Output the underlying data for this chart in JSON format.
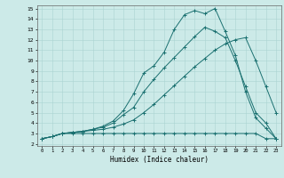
{
  "title": "",
  "xlabel": "Humidex (Indice chaleur)",
  "bg_color": "#cceae8",
  "grid_color": "#aad4d2",
  "line_color": "#1a7070",
  "xlim": [
    -0.5,
    23.5
  ],
  "ylim": [
    1.8,
    15.3
  ],
  "xticks": [
    0,
    1,
    2,
    3,
    4,
    5,
    6,
    7,
    8,
    9,
    10,
    11,
    12,
    13,
    14,
    15,
    16,
    17,
    18,
    19,
    20,
    21,
    22,
    23
  ],
  "yticks": [
    2,
    3,
    4,
    5,
    6,
    7,
    8,
    9,
    10,
    11,
    12,
    13,
    14,
    15
  ],
  "line1_x": [
    0,
    1,
    2,
    3,
    4,
    5,
    6,
    7,
    8,
    9,
    10,
    11,
    12,
    13,
    14,
    15,
    16,
    17,
    18,
    19,
    20,
    21,
    22,
    23
  ],
  "line1_y": [
    2.5,
    2.7,
    3.0,
    3.0,
    3.0,
    3.0,
    3.0,
    3.0,
    3.0,
    3.0,
    3.0,
    3.0,
    3.0,
    3.0,
    3.0,
    3.0,
    3.0,
    3.0,
    3.0,
    3.0,
    3.0,
    3.0,
    2.5,
    2.5
  ],
  "line2_x": [
    0,
    1,
    2,
    3,
    4,
    5,
    6,
    7,
    8,
    9,
    10,
    11,
    12,
    13,
    14,
    15,
    16,
    17,
    18,
    19,
    20,
    21,
    22,
    23
  ],
  "line2_y": [
    2.5,
    2.7,
    3.0,
    3.1,
    3.2,
    3.3,
    3.4,
    3.6,
    3.9,
    4.3,
    5.0,
    5.8,
    6.7,
    7.6,
    8.5,
    9.4,
    10.2,
    11.0,
    11.6,
    12.0,
    12.2,
    10.0,
    7.5,
    5.0
  ],
  "line3_x": [
    0,
    1,
    2,
    3,
    4,
    5,
    6,
    7,
    8,
    9,
    10,
    11,
    12,
    13,
    14,
    15,
    16,
    17,
    18,
    19,
    20,
    21,
    22,
    23
  ],
  "line3_y": [
    2.5,
    2.7,
    3.0,
    3.1,
    3.2,
    3.4,
    3.6,
    4.0,
    4.8,
    5.5,
    7.0,
    8.2,
    9.3,
    10.3,
    11.3,
    12.3,
    13.2,
    12.8,
    12.2,
    10.0,
    7.5,
    5.0,
    4.0,
    2.5
  ],
  "line4_x": [
    0,
    1,
    2,
    3,
    4,
    5,
    6,
    7,
    8,
    9,
    10,
    11,
    12,
    13,
    14,
    15,
    16,
    17,
    18,
    19,
    20,
    21,
    22,
    23
  ],
  "line4_y": [
    2.5,
    2.7,
    3.0,
    3.1,
    3.2,
    3.4,
    3.7,
    4.2,
    5.2,
    6.8,
    8.8,
    9.5,
    10.8,
    13.0,
    14.4,
    14.8,
    14.5,
    15.0,
    12.8,
    10.5,
    7.0,
    4.5,
    3.5,
    2.5
  ]
}
